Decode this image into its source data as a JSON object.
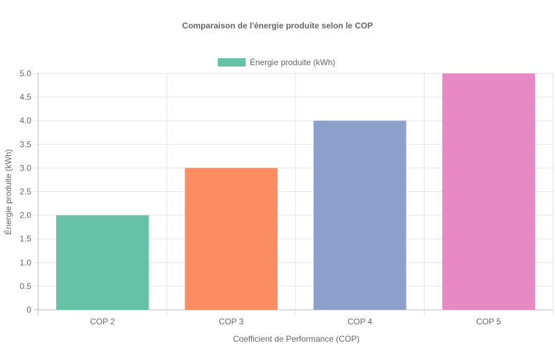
{
  "chart_data": {
    "type": "bar",
    "title": "Comparaison de l'énergie produite selon le COP",
    "xlabel": "Coefficient de Performance (COP)",
    "ylabel": "Énergie produite (kWh)",
    "categories": [
      "COP 2",
      "COP 3",
      "COP 4",
      "COP 5"
    ],
    "series": [
      {
        "name": "Énergie produite (kWh)",
        "values": [
          2,
          3,
          4,
          5
        ]
      }
    ],
    "bar_colors": [
      "#66c2a5",
      "#fc8d62",
      "#8da0cb",
      "#e78ac3"
    ],
    "legend_color": "#66c2a5",
    "ylim": [
      0,
      5
    ],
    "yticks": [
      "0",
      "0.5",
      "1.0",
      "1.5",
      "2.0",
      "2.5",
      "3.0",
      "3.5",
      "4.0",
      "4.5",
      "5.0"
    ],
    "grid": true,
    "legend_position": "top-center"
  }
}
